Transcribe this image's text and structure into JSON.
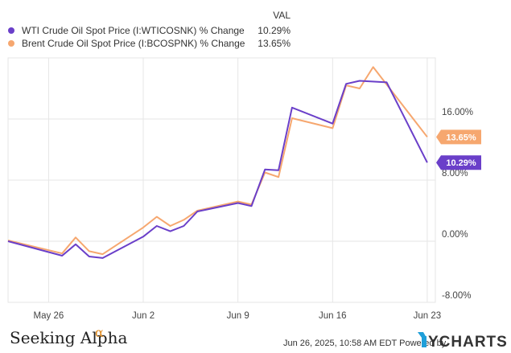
{
  "legend": {
    "header": "VAL",
    "items": [
      {
        "label": "WTI Crude Oil Spot Price (I:WTICOSNK) % Change",
        "value": "10.29%",
        "color": "#6a3fc9"
      },
      {
        "label": "Brent Crude Oil Spot Price (I:BCOSPNK) % Change",
        "value": "13.65%",
        "color": "#f6a76f"
      }
    ]
  },
  "footer": {
    "timestamp": "Jun 26, 2025, 10:58 AM EDT Powered by",
    "ycharts": "YCHARTS",
    "seeking_alpha": "Seeking Alpha",
    "alpha_symbol": "α"
  },
  "chart_data": {
    "type": "line",
    "x_ticks": [
      {
        "label": "May 26",
        "day": 2
      },
      {
        "label": "Jun 2",
        "day": 9
      },
      {
        "label": "Jun 9",
        "day": 16
      },
      {
        "label": "Jun 16",
        "day": 23
      },
      {
        "label": "Jun 23",
        "day": 30
      }
    ],
    "y_ticks": [
      {
        "label": "16.00%",
        "value": 16
      },
      {
        "label": "8.00%",
        "value": 8
      },
      {
        "label": "0.00%",
        "value": 0
      },
      {
        "label": "-8.00%",
        "value": -8
      }
    ],
    "xlim": [
      "May 24",
      "Jun 24"
    ],
    "ylim": [
      -8,
      24
    ],
    "series": [
      {
        "name": "WTI Crude Oil Spot Price (I:WTICOSNK) % Change",
        "color": "#6a3fc9",
        "end_label": "10.29%",
        "points": [
          {
            "date": "May 23",
            "value": 0.0
          },
          {
            "date": "May 27",
            "value": -1.9
          },
          {
            "date": "May 28",
            "value": -0.4
          },
          {
            "date": "May 29",
            "value": -2.0
          },
          {
            "date": "May 30",
            "value": -2.2
          },
          {
            "date": "Jun 2",
            "value": 0.6
          },
          {
            "date": "Jun 3",
            "value": 2.0
          },
          {
            "date": "Jun 4",
            "value": 1.3
          },
          {
            "date": "Jun 5",
            "value": 2.0
          },
          {
            "date": "Jun 6",
            "value": 3.9
          },
          {
            "date": "Jun 9",
            "value": 5.0
          },
          {
            "date": "Jun 10",
            "value": 4.6
          },
          {
            "date": "Jun 11",
            "value": 9.4
          },
          {
            "date": "Jun 12",
            "value": 9.3
          },
          {
            "date": "Jun 13",
            "value": 17.5
          },
          {
            "date": "Jun 16",
            "value": 15.4
          },
          {
            "date": "Jun 17",
            "value": 20.6
          },
          {
            "date": "Jun 18",
            "value": 21.0
          },
          {
            "date": "Jun 20",
            "value": 20.8
          },
          {
            "date": "Jun 23",
            "value": 10.29
          }
        ]
      },
      {
        "name": "Brent Crude Oil Spot Price (I:BCOSPNK) % Change",
        "color": "#f6a76f",
        "end_label": "13.65%",
        "points": [
          {
            "date": "May 23",
            "value": 0.1
          },
          {
            "date": "May 27",
            "value": -1.6
          },
          {
            "date": "May 28",
            "value": 0.5
          },
          {
            "date": "May 29",
            "value": -1.3
          },
          {
            "date": "May 30",
            "value": -1.7
          },
          {
            "date": "Jun 2",
            "value": 1.8
          },
          {
            "date": "Jun 3",
            "value": 3.2
          },
          {
            "date": "Jun 4",
            "value": 2.0
          },
          {
            "date": "Jun 5",
            "value": 2.8
          },
          {
            "date": "Jun 6",
            "value": 4.0
          },
          {
            "date": "Jun 9",
            "value": 5.2
          },
          {
            "date": "Jun 10",
            "value": 4.8
          },
          {
            "date": "Jun 11",
            "value": 9.0
          },
          {
            "date": "Jun 12",
            "value": 8.4
          },
          {
            "date": "Jun 13",
            "value": 16.1
          },
          {
            "date": "Jun 16",
            "value": 14.8
          },
          {
            "date": "Jun 17",
            "value": 20.4
          },
          {
            "date": "Jun 18",
            "value": 20.0
          },
          {
            "date": "Jun 19",
            "value": 22.8
          },
          {
            "date": "Jun 23",
            "value": 13.65
          }
        ]
      }
    ]
  }
}
